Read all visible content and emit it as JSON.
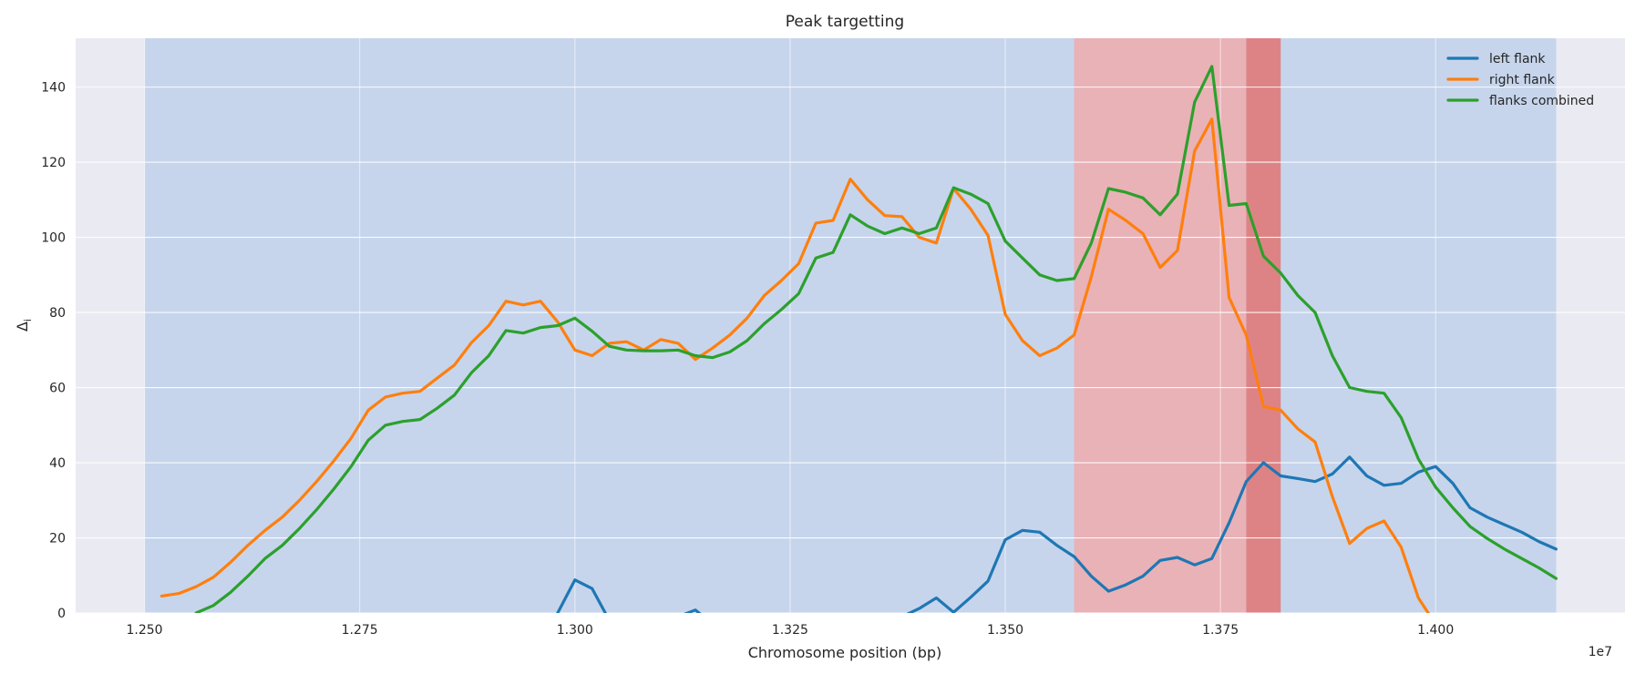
{
  "chart_data": {
    "type": "line",
    "title": "Peak targetting",
    "xlabel": "Chromosome position (bp)",
    "ylabel": "Δ",
    "ylabel_subscript": "i",
    "x_offset_label": "1e7",
    "xlim": [
      12420000,
      14220000
    ],
    "ylim": [
      0,
      153
    ],
    "x_ticks": [
      12500000,
      12750000,
      13000000,
      13250000,
      13500000,
      13750000,
      14000000
    ],
    "x_tick_labels": [
      "1.250",
      "1.275",
      "1.300",
      "1.325",
      "1.350",
      "1.375",
      "1.400"
    ],
    "y_ticks": [
      0,
      20,
      40,
      60,
      80,
      100,
      120,
      140
    ],
    "y_tick_labels": [
      "0",
      "20",
      "40",
      "60",
      "80",
      "100",
      "120",
      "140"
    ],
    "grid": true,
    "legend_position": "top-right",
    "background_color": "#eaeaf2",
    "grid_color": "#ffffff",
    "bands": [
      {
        "x0": 12500000,
        "x1": 14140000,
        "color": "#aec7e8",
        "opacity": 0.6
      },
      {
        "x0": 13580000,
        "x1": 13780000,
        "color": "#f4a6a6",
        "opacity": 0.75
      },
      {
        "x0": 13780000,
        "x1": 13820000,
        "color": "#e07a7a",
        "opacity": 0.9
      }
    ],
    "series": [
      {
        "name": "left flank",
        "color": "#1f77b4",
        "x": [
          12980000,
          13000000,
          13020000,
          13040000,
          13060000,
          13080000,
          13100000,
          13120000,
          13140000,
          13160000,
          13180000,
          13200000,
          13220000,
          13240000,
          13260000,
          13280000,
          13300000,
          13320000,
          13340000,
          13360000,
          13380000,
          13400000,
          13420000,
          13440000,
          13460000,
          13480000,
          13500000,
          13520000,
          13540000,
          13560000,
          13580000,
          13600000,
          13620000,
          13640000,
          13660000,
          13680000,
          13700000,
          13720000,
          13740000,
          13760000,
          13780000,
          13800000,
          13820000,
          13840000,
          13860000,
          13880000,
          13900000,
          13920000,
          13940000,
          13960000,
          13980000,
          14000000,
          14020000,
          14040000,
          14060000,
          14080000,
          14100000,
          14120000,
          14140000
        ],
        "values": [
          0,
          8.8,
          6.5,
          -2,
          -5,
          -3,
          -4,
          -1,
          0.8,
          -3,
          -6,
          -8,
          -10,
          -9,
          -8,
          -9,
          -7,
          -5,
          -3,
          -2,
          -1,
          1.2,
          4,
          0.2,
          4.2,
          8.5,
          19.5,
          22,
          21.5,
          18,
          15,
          9.8,
          5.8,
          7.5,
          9.8,
          14,
          14.8,
          12.8,
          14.5,
          24,
          35,
          40,
          36.5,
          35.8,
          35,
          37,
          41.5,
          36.5,
          34,
          34.5,
          37.5,
          39,
          34.5,
          28,
          25.5,
          23.5,
          21.5,
          19,
          17
        ]
      },
      {
        "name": "right flank",
        "color": "#ff7f0e",
        "x": [
          12520000,
          12540000,
          12560000,
          12580000,
          12600000,
          12620000,
          12640000,
          12660000,
          12680000,
          12700000,
          12720000,
          12740000,
          12760000,
          12780000,
          12800000,
          12820000,
          12840000,
          12860000,
          12880000,
          12900000,
          12920000,
          12940000,
          12960000,
          12980000,
          13000000,
          13020000,
          13040000,
          13060000,
          13080000,
          13100000,
          13120000,
          13140000,
          13160000,
          13180000,
          13200000,
          13220000,
          13240000,
          13260000,
          13280000,
          13300000,
          13320000,
          13340000,
          13360000,
          13380000,
          13400000,
          13420000,
          13440000,
          13460000,
          13480000,
          13500000,
          13520000,
          13540000,
          13560000,
          13580000,
          13600000,
          13620000,
          13640000,
          13660000,
          13680000,
          13700000,
          13720000,
          13740000,
          13760000,
          13780000,
          13800000,
          13820000,
          13840000,
          13860000,
          13880000,
          13900000,
          13920000,
          13940000,
          13960000,
          13980000,
          14000000
        ],
        "values": [
          4.5,
          5.2,
          7,
          9.5,
          13.5,
          18,
          22,
          25.5,
          30,
          35,
          40.5,
          46.5,
          54,
          57.5,
          58.5,
          59,
          62.5,
          66,
          72,
          76.5,
          83,
          82,
          83,
          77.5,
          70,
          68.5,
          71.8,
          72.2,
          70,
          72.8,
          71.8,
          67.5,
          70.5,
          74,
          78.5,
          84.5,
          88.5,
          93,
          103.8,
          104.5,
          115.5,
          110,
          105.8,
          105.5,
          100,
          98.5,
          113,
          107.5,
          100.5,
          79.5,
          72.5,
          68.5,
          70.5,
          74,
          89.5,
          107.5,
          104.5,
          101,
          92,
          96.5,
          123,
          131.5,
          84,
          74,
          55,
          54,
          49,
          45.5,
          31,
          18.5,
          22.5,
          24.5,
          17.5,
          4,
          -3
        ]
      },
      {
        "name": "flanks combined",
        "color": "#2ca02c",
        "x": [
          12560000,
          12580000,
          12600000,
          12620000,
          12640000,
          12660000,
          12680000,
          12700000,
          12720000,
          12740000,
          12760000,
          12780000,
          12800000,
          12820000,
          12840000,
          12860000,
          12880000,
          12900000,
          12920000,
          12940000,
          12960000,
          12980000,
          13000000,
          13020000,
          13040000,
          13060000,
          13080000,
          13100000,
          13120000,
          13140000,
          13160000,
          13180000,
          13200000,
          13220000,
          13240000,
          13260000,
          13280000,
          13300000,
          13320000,
          13340000,
          13360000,
          13380000,
          13400000,
          13420000,
          13440000,
          13460000,
          13480000,
          13500000,
          13520000,
          13540000,
          13560000,
          13580000,
          13600000,
          13620000,
          13640000,
          13660000,
          13680000,
          13700000,
          13720000,
          13740000,
          13760000,
          13780000,
          13800000,
          13820000,
          13840000,
          13860000,
          13880000,
          13900000,
          13920000,
          13940000,
          13960000,
          13980000,
          14000000,
          14020000,
          14040000,
          14060000,
          14080000,
          14100000,
          14120000,
          14140000
        ],
        "values": [
          0,
          2,
          5.5,
          9.8,
          14.5,
          18,
          22.5,
          27.5,
          33,
          39,
          46,
          50,
          51,
          51.5,
          54.5,
          58,
          64,
          68.5,
          75.2,
          74.5,
          76,
          76.5,
          78.5,
          75,
          71,
          70,
          69.8,
          69.8,
          70,
          68.5,
          68,
          69.5,
          72.5,
          77,
          80.8,
          85,
          94.5,
          96,
          106,
          103,
          101,
          102.5,
          101,
          102.5,
          113.2,
          111.5,
          109,
          99,
          94.5,
          90,
          88.5,
          89,
          98.5,
          113,
          112,
          110.5,
          106,
          111.5,
          136,
          145.5,
          108.5,
          109,
          95,
          90.5,
          84.5,
          80,
          68.5,
          60,
          59,
          58.5,
          52,
          41,
          33.5,
          28,
          23,
          19.8,
          17,
          14.5,
          12,
          9.2
        ]
      }
    ]
  }
}
